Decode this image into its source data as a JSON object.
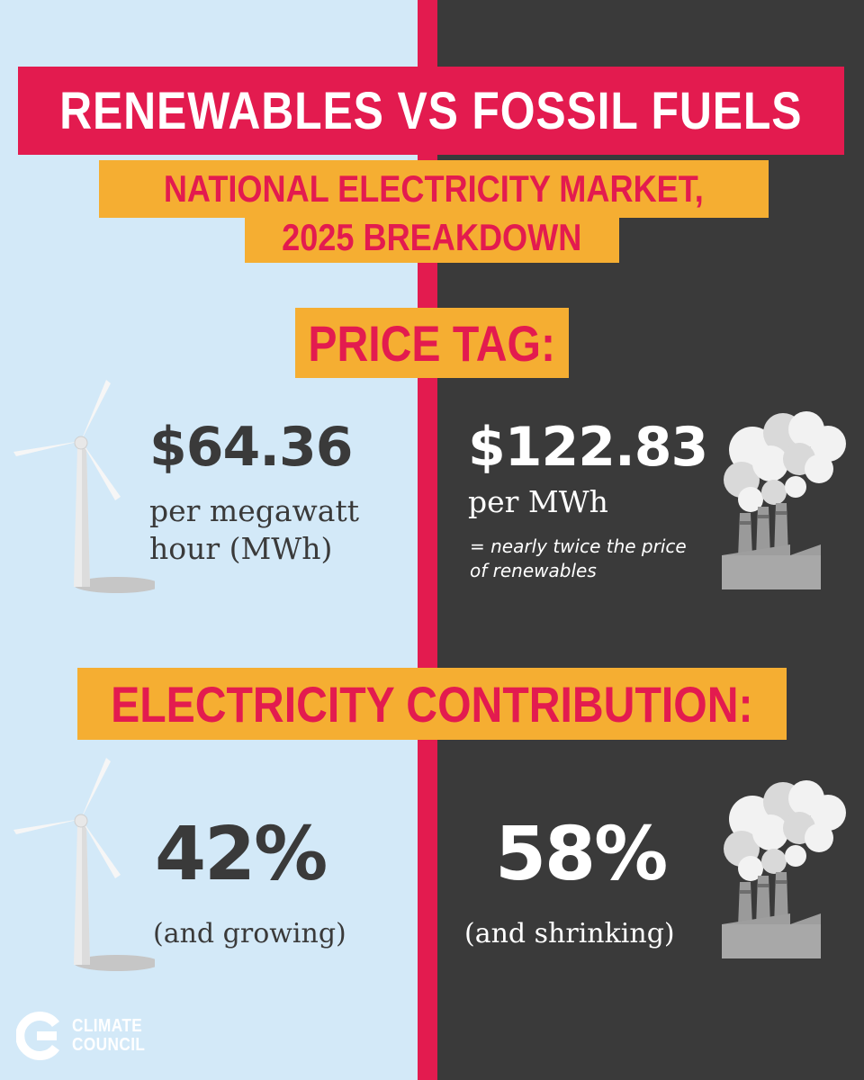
{
  "header": {
    "title": "RENEWABLES VS FOSSIL FUELS",
    "subtitle_line1": "NATIONAL ELECTRICITY MARKET,",
    "subtitle_line2": "2025 BREAKDOWN"
  },
  "price_section": {
    "label": "PRICE TAG:",
    "renewables": {
      "price": "$64.36",
      "unit_line1": "per megawatt",
      "unit_line2": "hour (MWh)"
    },
    "fossil": {
      "price": "$122.83",
      "unit": "per MWh",
      "note_line1": "= nearly twice the price",
      "note_line2": "of renewables"
    }
  },
  "contribution_section": {
    "label": "ELECTRICITY CONTRIBUTION:",
    "renewables": {
      "percent": "42%",
      "note": "(and growing)"
    },
    "fossil": {
      "percent": "58%",
      "note": "(and shrinking)"
    }
  },
  "logo": {
    "line1": "CLIMATE",
    "line2": "COUNCIL"
  },
  "colors": {
    "left_bg": "#d3e9f8",
    "right_bg": "#3a3a3a",
    "accent_red": "#e31b4f",
    "accent_orange": "#f5ae32"
  },
  "icons": {
    "renewables": "wind-turbine-icon",
    "fossil": "factory-smoke-icon",
    "logo": "climate-council-logo-icon"
  }
}
